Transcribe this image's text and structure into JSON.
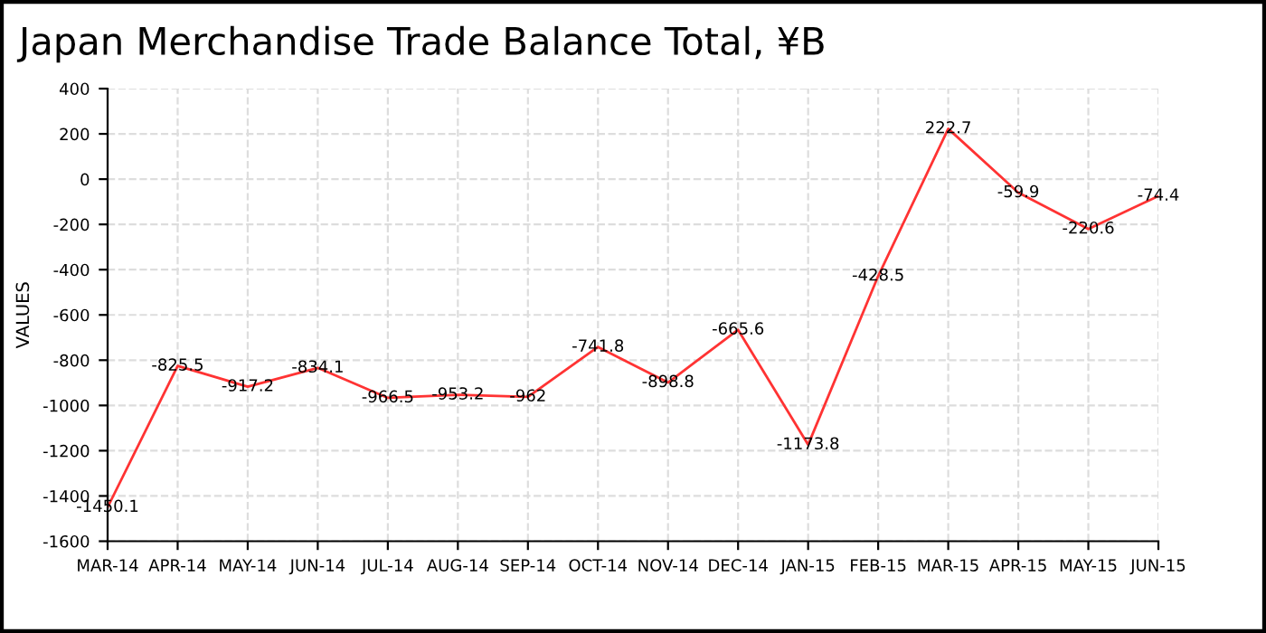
{
  "chart_data": {
    "type": "line",
    "title": "Japan Merchandise Trade Balance Total, ¥B",
    "ylabel": "VALUES",
    "categories": [
      "MAR-14",
      "APR-14",
      "MAY-14",
      "JUN-14",
      "JUL-14",
      "AUG-14",
      "SEP-14",
      "OCT-14",
      "NOV-14",
      "DEC-14",
      "JAN-15",
      "FEB-15",
      "MAR-15",
      "APR-15",
      "MAY-15",
      "JUN-15"
    ],
    "series": [
      {
        "color": "#ff3333",
        "values": [
          -1450.1,
          -825.5,
          -917.2,
          -834.1,
          -966.5,
          -953.2,
          -962,
          -741.8,
          -898.8,
          -665.6,
          -1173.8,
          -428.5,
          222.7,
          -59.9,
          -220.6,
          -74.4
        ]
      }
    ],
    "ylim": [
      -1600,
      400
    ],
    "yticks": [
      -1600,
      -1400,
      -1200,
      -1000,
      -800,
      -600,
      -400,
      -200,
      0,
      200,
      400
    ],
    "grid": true,
    "data_labels": true,
    "marker": "none",
    "line_style": "solid"
  }
}
